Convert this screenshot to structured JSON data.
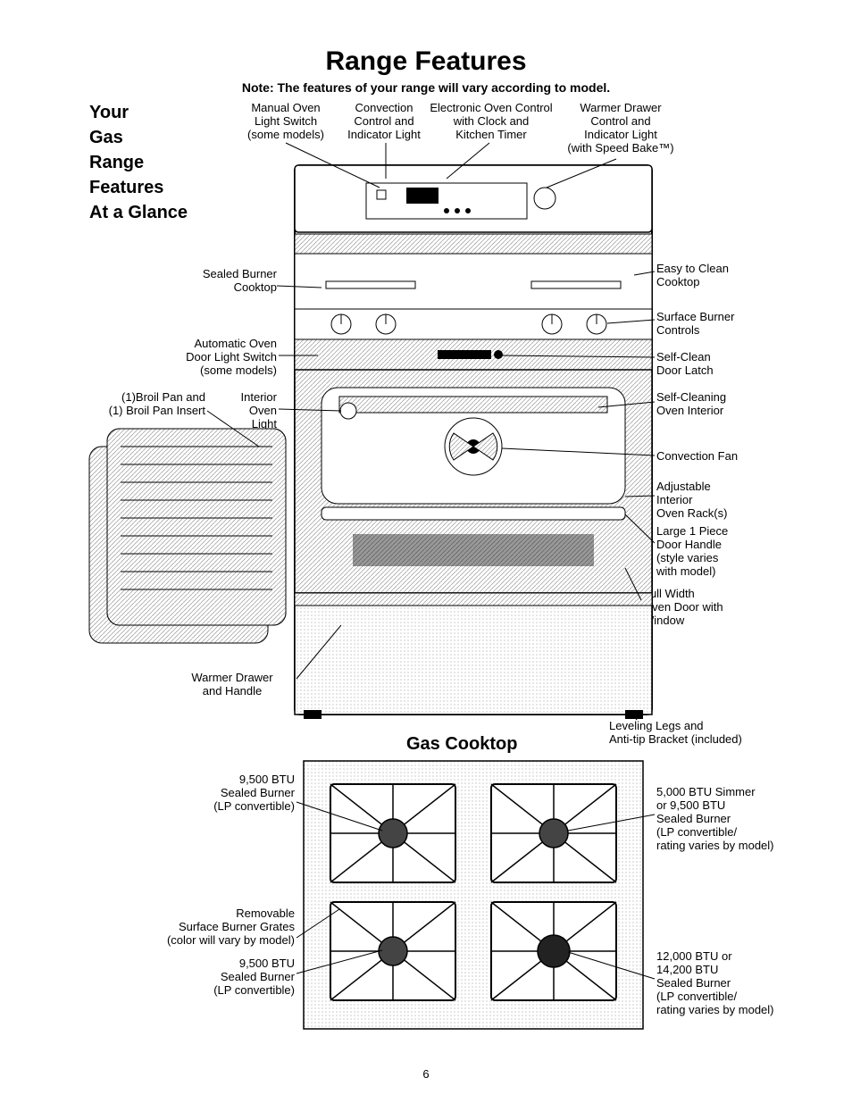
{
  "page": {
    "title": "Range Features",
    "note": "Note: The features of your range will vary according to model.",
    "side_title": "Your\nGas\nRange\nFeatures\nAt a Glance",
    "cooktop_title": "Gas Cooktop",
    "page_number": "6"
  },
  "top_labels": {
    "manual_oven": "Manual Oven\nLight Switch\n(some models)",
    "convection": "Convection\nControl and\nIndicator Light",
    "electronic": "Electronic Oven Control\nwith Clock and\nKitchen Timer",
    "warmer": "Warmer Drawer\nControl and\nIndicator Light\n(with Speed Bake™)"
  },
  "left_labels": {
    "sealed_burner": "Sealed Burner\nCooktop",
    "auto_oven": "Automatic Oven\nDoor Light Switch\n(some models)",
    "broil_pan": "(1)Broil Pan and\n(1) Broil Pan Insert",
    "interior_light": "Interior\nOven\nLight",
    "warmer_drawer": "Warmer Drawer\nand Handle"
  },
  "right_labels": {
    "easy_clean": "Easy to Clean\nCooktop",
    "surface_controls": "Surface Burner\nControls",
    "self_clean_latch": "Self-Clean\nDoor Latch",
    "self_cleaning": "Self-Cleaning\nOven Interior",
    "convection_fan": "Convection Fan",
    "adjustable_racks": "Adjustable\nInterior\nOven Rack(s)",
    "door_handle": "Large 1 Piece\nDoor Handle\n(style varies\nwith model)",
    "full_width": "Full Width\nOven Door with\nWindow",
    "leveling": "Leveling Legs and\nAnti-tip Bracket (included)"
  },
  "cooktop_labels": {
    "tl": "9,500 BTU\nSealed Burner\n(LP convertible)",
    "tr": "5,000 BTU Simmer\nor 9,500 BTU\nSealed Burner\n(LP convertible/\nrating varies by model)",
    "grates": "Removable\nSurface Burner Grates\n(color will vary by model)",
    "bl": "9,500 BTU\nSealed Burner\n(LP convertible)",
    "br": "12,000 BTU or\n14,200 BTU\nSealed Burner\n(LP convertible/\nrating varies by model)"
  },
  "style": {
    "text_color": "#000000",
    "background": "#ffffff",
    "line_color": "#000000",
    "hatch_color": "#888888",
    "title_fontsize": 30,
    "note_fontsize": 14,
    "label_fontsize": 13,
    "side_title_fontsize": 20
  }
}
